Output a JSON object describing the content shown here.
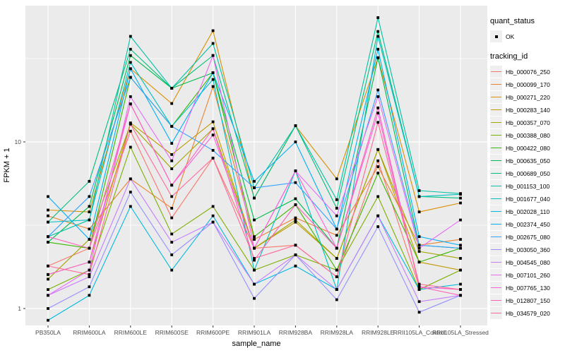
{
  "chart_data": {
    "type": "line",
    "title": "",
    "xlabel": "sample_name",
    "ylabel": "FPKM + 1",
    "yscale": "log10",
    "ylim": [
      0.79,
      66
    ],
    "yticks": [
      1,
      10
    ],
    "grid": true,
    "panel_bg": "#EBEBEB",
    "grid_color": "#FFFFFF",
    "point_color": "#000000",
    "axis_text_color": "#4D4D4D",
    "categories": [
      "PB350LA",
      "RRIM600LA",
      "RRIM600LE",
      "RRIM600SE",
      "RRIM600PE",
      "RRIM901LA",
      "RRIM928BA",
      "RRIM928LA",
      "RRIM928LE",
      "RRII105LA_Control",
      "RRII105LA_Stressed"
    ],
    "series": [
      {
        "name": "Hb_000076_250",
        "color": "#F8766D",
        "values": [
          1.8,
          2.3,
          11.6,
          3.5,
          8.0,
          2.3,
          2.4,
          1.55,
          7.7,
          1.35,
          1.3
        ]
      },
      {
        "name": "Hb_000099_170",
        "color": "#EA8331",
        "values": [
          3.6,
          3.0,
          6.0,
          4.0,
          21.5,
          2.6,
          3.5,
          2.75,
          7.1,
          2.4,
          2.6
        ]
      },
      {
        "name": "Hb_000271_220",
        "color": "#D89000",
        "values": [
          3.9,
          3.8,
          27.5,
          17.0,
          46.5,
          4.6,
          12.5,
          6.0,
          32.0,
          3.8,
          4.3
        ]
      },
      {
        "name": "Hb_000283_140",
        "color": "#C09B00",
        "values": [
          1.6,
          1.9,
          13.0,
          8.4,
          13.2,
          2.3,
          3.3,
          2.0,
          9.0,
          1.9,
          1.7
        ]
      },
      {
        "name": "Hb_000357_070",
        "color": "#A3A500",
        "values": [
          1.5,
          2.6,
          12.8,
          6.9,
          12.0,
          2.3,
          3.4,
          2.0,
          9.0,
          2.2,
          2.0
        ]
      },
      {
        "name": "Hb_000388_080",
        "color": "#7CAE00",
        "values": [
          1.3,
          1.7,
          9.3,
          2.8,
          4.1,
          1.7,
          2.1,
          1.7,
          4.7,
          1.3,
          1.7
        ]
      },
      {
        "name": "Hb_000422_080",
        "color": "#39B600",
        "values": [
          2.5,
          2.3,
          24.4,
          12.4,
          26.0,
          2.7,
          4.2,
          1.7,
          6.5,
          1.9,
          2.3
        ]
      },
      {
        "name": "Hb_000635_050",
        "color": "#00BB4E",
        "values": [
          2.5,
          4.1,
          33.0,
          21.0,
          26.0,
          3.4,
          4.56,
          2.3,
          32.0,
          2.4,
          2.3
        ]
      },
      {
        "name": "Hb_000689_050",
        "color": "#00BF7D",
        "values": [
          3.3,
          5.8,
          36.0,
          21.0,
          33.0,
          4.6,
          12.5,
          4.0,
          46.0,
          4.7,
          4.6
        ]
      },
      {
        "name": "Hb_001153_100",
        "color": "#00C1A3",
        "values": [
          2.7,
          3.4,
          43.0,
          21.0,
          39.0,
          5.3,
          12.5,
          4.5,
          55.7,
          5.1,
          4.9
        ]
      },
      {
        "name": "Hb_001677_040",
        "color": "#00BFC4",
        "values": [
          3.3,
          3.4,
          30.0,
          12.4,
          23.7,
          1.7,
          6.7,
          1.3,
          43.0,
          4.7,
          4.85
        ]
      },
      {
        "name": "Hb_002028_110",
        "color": "#00BAE0",
        "values": [
          0.85,
          1.2,
          4.1,
          1.7,
          3.6,
          1.4,
          1.8,
          1.3,
          3.6,
          1.3,
          1.4
        ]
      },
      {
        "name": "Hb_002374_450",
        "color": "#00B0F6",
        "values": [
          4.7,
          2.6,
          27.5,
          9.8,
          26.0,
          5.8,
          10.0,
          3.0,
          36.0,
          2.7,
          2.4
        ]
      },
      {
        "name": "Hb_002675_080",
        "color": "#35A2FF",
        "values": [
          2.7,
          4.7,
          24.4,
          12.4,
          8.9,
          5.3,
          5.7,
          3.0,
          20.5,
          2.4,
          2.3
        ]
      },
      {
        "name": "Hb_003050_360",
        "color": "#9590FF",
        "values": [
          1.0,
          1.35,
          5.0,
          2.1,
          3.3,
          1.15,
          2.1,
          1.13,
          3.1,
          0.95,
          1.2
        ]
      },
      {
        "name": "Hb_004545_080",
        "color": "#C77CFF",
        "values": [
          1.2,
          1.55,
          6.0,
          2.5,
          3.3,
          1.4,
          2.1,
          1.3,
          3.6,
          1.1,
          1.2
        ]
      },
      {
        "name": "Hb_007101_260",
        "color": "#E76BF3",
        "values": [
          1.2,
          1.7,
          18.7,
          7.7,
          33.0,
          2.3,
          6.7,
          3.6,
          18.7,
          2.3,
          3.4
        ]
      },
      {
        "name": "Hb_007765_130",
        "color": "#FA62DB",
        "values": [
          1.6,
          1.9,
          16.9,
          5.5,
          11.0,
          2.3,
          6.7,
          2.3,
          14.9,
          1.35,
          1.3
        ]
      },
      {
        "name": "Hb_012807_150",
        "color": "#FF62BC",
        "values": [
          2.7,
          2.3,
          16.9,
          5.5,
          12.0,
          1.95,
          4.2,
          2.3,
          16.0,
          1.35,
          1.2
        ]
      },
      {
        "name": "Hb_034579_020",
        "color": "#FF6A98",
        "values": [
          1.8,
          1.6,
          12.8,
          4.7,
          8.0,
          2.0,
          2.4,
          1.55,
          13.1,
          1.4,
          1.3
        ]
      }
    ],
    "legend_position": "right"
  },
  "legend": {
    "quant_status": {
      "title": "quant_status",
      "items": [
        {
          "label": "OK",
          "symbol": "black-square"
        }
      ]
    },
    "tracking_id": {
      "title": "tracking_id"
    }
  }
}
